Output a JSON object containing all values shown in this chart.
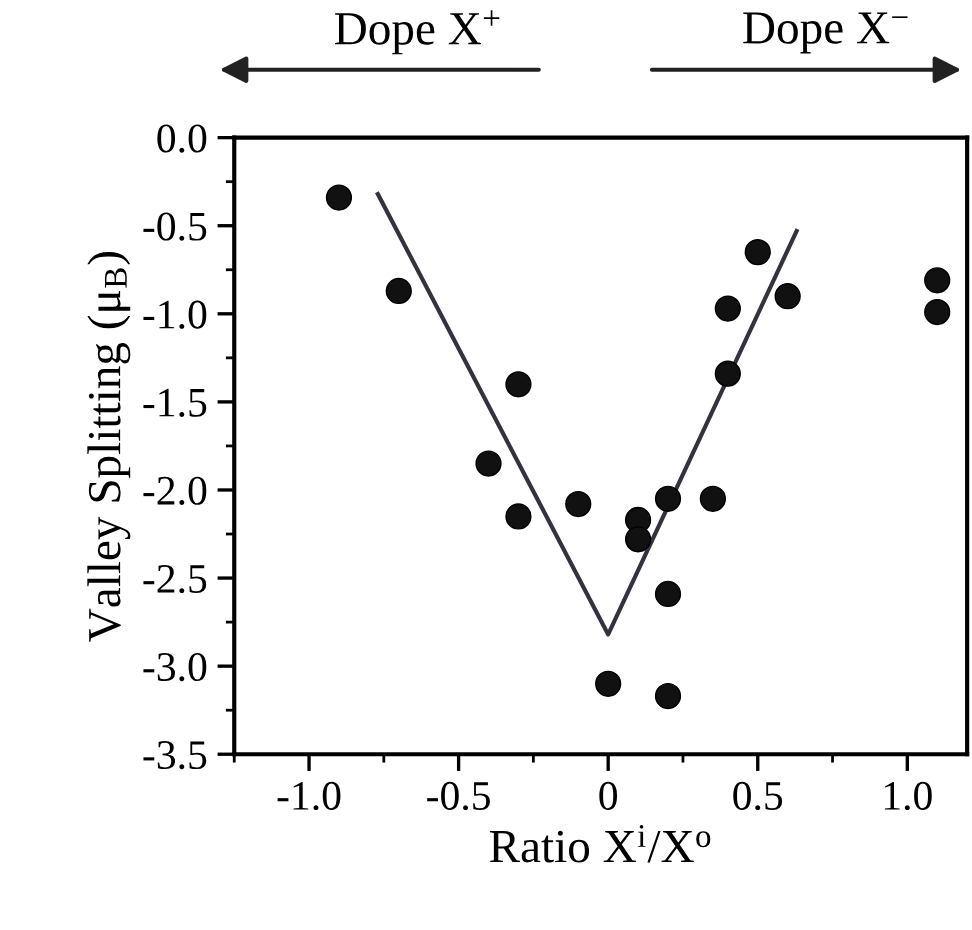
{
  "chart_data": {
    "type": "scatter",
    "xlabel": "Ratio X$^{i}$/X$^{o}$",
    "ylabel": "Valley Splitting (μ$_{B}$)",
    "annotations": [
      "Dope X$^{+}$",
      "Dope X$^{−}$"
    ],
    "series": [
      {
        "color": "#111111",
        "marker": "circle",
        "x": [
          -0.9,
          -0.7,
          -0.3,
          -0.4,
          -0.3,
          -0.1,
          0.1,
          0.1,
          0.2,
          0.35,
          0.2,
          0.0,
          0.2,
          0.4,
          0.4,
          0.5,
          0.6,
          1.1,
          1.1
        ],
        "values": [
          -0.34,
          -0.87,
          -1.4,
          -1.85,
          -2.15,
          -2.08,
          -2.17,
          -2.28,
          -2.05,
          -2.05,
          -2.59,
          -3.1,
          -3.17,
          -1.34,
          -0.97,
          -0.65,
          -0.9,
          -0.81,
          -0.99
        ]
      },
      {
        "type": "line",
        "color": "#333340",
        "line_style": "solid",
        "x": [
          -0.77,
          0.0,
          0.63
        ],
        "values": [
          -0.32,
          -2.82,
          -0.53
        ]
      }
    ],
    "xlim": [
      -1.25,
      1.2
    ],
    "ylim": [
      -3.5,
      0.0
    ],
    "xticks": [
      {
        "value": -1,
        "label": "-1.0"
      },
      -0.5,
      0,
      0.5,
      {
        "value": 1,
        "label": "1.0"
      }
    ],
    "yticks": [
      {
        "value": 0,
        "label": "0.0"
      },
      -0.5,
      {
        "value": -1,
        "label": "-1.0"
      },
      -1.5,
      {
        "value": -2,
        "label": "-2.0"
      },
      -2.5,
      {
        "value": -3,
        "label": "-3.0"
      },
      -3.5
    ],
    "grid": false,
    "legend": false
  }
}
